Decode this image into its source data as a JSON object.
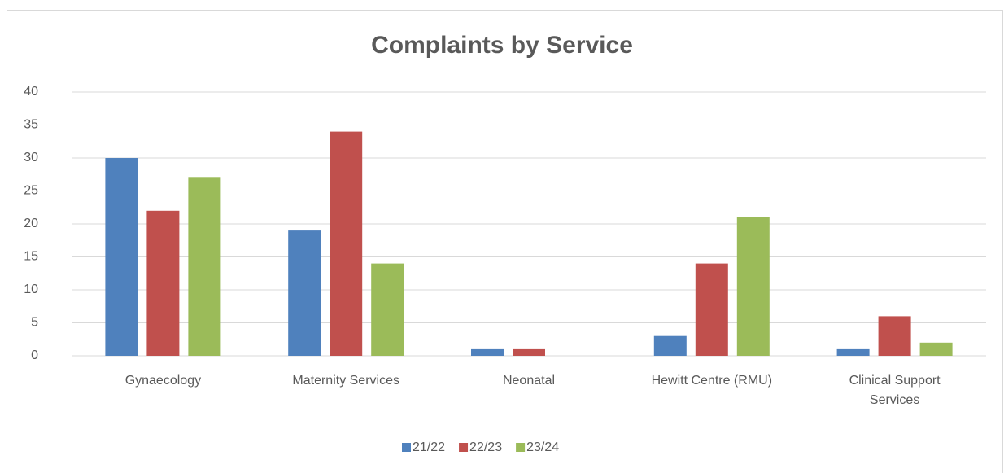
{
  "chart_data": {
    "type": "bar",
    "title": "Complaints by Service",
    "categories": [
      "Gynaecology",
      "Maternity Services",
      "Neonatal",
      "Hewitt Centre (RMU)",
      "Clinical Support Services"
    ],
    "series": [
      {
        "name": "21/22",
        "color": "#4f81bd",
        "values": [
          30,
          19,
          1,
          3,
          1
        ]
      },
      {
        "name": "22/23",
        "color": "#c0504d",
        "values": [
          22,
          34,
          1,
          14,
          6
        ]
      },
      {
        "name": "23/24",
        "color": "#9bbb59",
        "values": [
          27,
          14,
          0,
          21,
          2
        ]
      }
    ],
    "ylim": [
      0,
      40
    ],
    "yticks": [
      0,
      5,
      10,
      15,
      20,
      25,
      30,
      35,
      40
    ],
    "grid": true,
    "legend": "bottom"
  }
}
